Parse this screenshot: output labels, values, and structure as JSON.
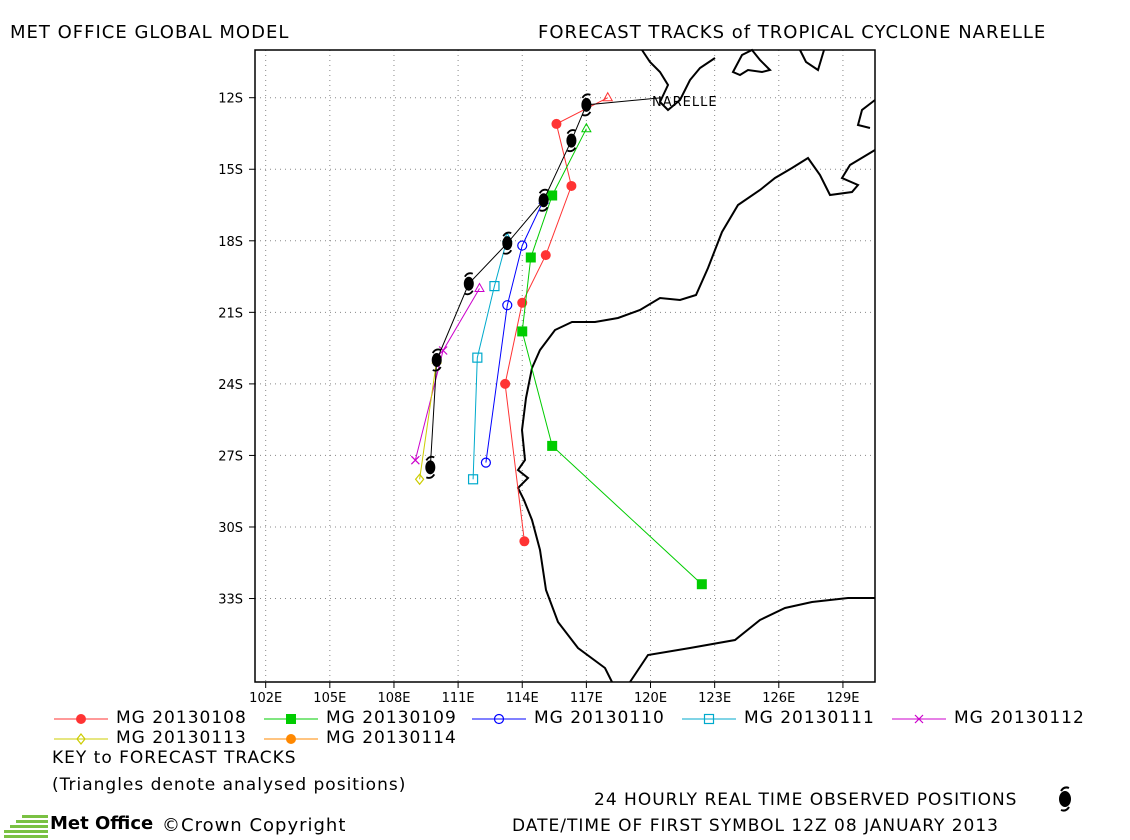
{
  "header": {
    "left_title": "MET OFFICE GLOBAL MODEL",
    "right_title": "FORECAST TRACKS of TROPICAL CYCLONE NARELLE"
  },
  "map": {
    "storm_label": "NARELLE",
    "lon_ticks": [
      "102E",
      "105E",
      "108E",
      "111E",
      "114E",
      "117E",
      "120E",
      "123E",
      "126E",
      "129E"
    ],
    "lat_ticks": [
      "12S",
      "15S",
      "18S",
      "21S",
      "24S",
      "27S",
      "30S",
      "33S"
    ],
    "lon_range": [
      101.5,
      130.5
    ],
    "lat_range": [
      -10,
      -36.5
    ],
    "land_color": "#ffffff",
    "grid": "dotted"
  },
  "chart_data": {
    "type": "map-tracks",
    "observed": [
      {
        "lon": 117.0,
        "lat": -12.3
      },
      {
        "lon": 116.3,
        "lat": -13.8
      },
      {
        "lon": 115.0,
        "lat": -16.3
      },
      {
        "lon": 113.3,
        "lat": -18.1
      },
      {
        "lon": 111.5,
        "lat": -19.8
      },
      {
        "lon": 110.0,
        "lat": -23.0
      },
      {
        "lon": 109.7,
        "lat": -27.5
      }
    ],
    "tracks": [
      {
        "name": "MG 20130108",
        "color": "#ff3333",
        "marker": "filled-circle",
        "points": [
          [
            118.0,
            -12.0
          ],
          [
            115.6,
            -13.1
          ],
          [
            116.3,
            -15.7
          ],
          [
            115.1,
            -18.6
          ],
          [
            114.0,
            -20.6
          ],
          [
            113.2,
            -24.0
          ],
          [
            114.1,
            -30.6
          ]
        ]
      },
      {
        "name": "MG 20130109",
        "color": "#00cc00",
        "marker": "filled-square",
        "points": [
          [
            117.0,
            -13.3
          ],
          [
            115.4,
            -16.1
          ],
          [
            114.4,
            -18.7
          ],
          [
            114.0,
            -21.8
          ],
          [
            115.4,
            -26.6
          ],
          [
            122.4,
            -32.4
          ]
        ]
      },
      {
        "name": "MG 20130110",
        "color": "#0000ff",
        "marker": "open-circle",
        "points": [
          [
            115.0,
            -16.3
          ],
          [
            114.0,
            -18.2
          ],
          [
            113.3,
            -20.7
          ],
          [
            112.3,
            -27.3
          ]
        ]
      },
      {
        "name": "MG 20130111",
        "color": "#00aacc",
        "marker": "open-square",
        "points": [
          [
            113.3,
            -17.9
          ],
          [
            112.7,
            -19.9
          ],
          [
            111.9,
            -22.9
          ],
          [
            111.7,
            -28.0
          ]
        ]
      },
      {
        "name": "MG 20130112",
        "color": "#cc00cc",
        "marker": "cross",
        "points": [
          [
            112.0,
            -20.0
          ],
          [
            110.3,
            -22.6
          ],
          [
            109.0,
            -27.2
          ]
        ]
      },
      {
        "name": "MG 20130113",
        "color": "#cccc00",
        "marker": "diamond",
        "points": [
          [
            110.0,
            -23.0
          ],
          [
            109.2,
            -28.0
          ]
        ]
      },
      {
        "name": "MG 20130114",
        "color": "#ff8800",
        "marker": "filled-circle",
        "points": []
      }
    ]
  },
  "legend": {
    "key_title": "KEY to FORECAST TRACKS",
    "key_note": "(Triangles denote analysed positions)"
  },
  "footer": {
    "observed_label": "24 HOURLY REAL TIME OBSERVED POSITIONS",
    "date_label": "DATE/TIME OF FIRST SYMBOL 12Z 08 JANUARY 2013",
    "logo_text": "Met Office",
    "copyright": "©Crown Copyright"
  }
}
